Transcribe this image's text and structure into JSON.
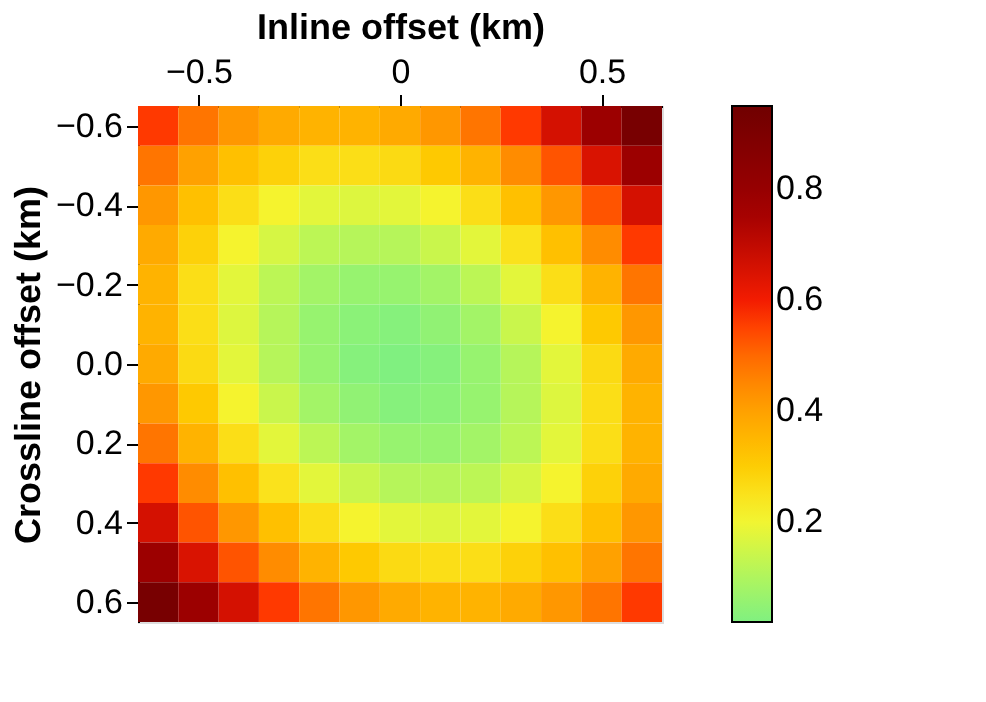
{
  "chart_data": {
    "type": "heatmap",
    "xlabel": "Inline offset (km)",
    "ylabel": "Crossline offset (km)",
    "x": [
      -0.6,
      -0.5,
      -0.4,
      -0.3,
      -0.2,
      -0.1,
      0.0,
      0.1,
      0.2,
      0.3,
      0.4,
      0.5,
      0.6
    ],
    "y": [
      -0.6,
      -0.5,
      -0.4,
      -0.3,
      -0.2,
      -0.1,
      0.0,
      0.1,
      0.2,
      0.3,
      0.4,
      0.5,
      0.6
    ],
    "xlim": [
      -0.65,
      0.65
    ],
    "ylim": [
      0.65,
      -0.65
    ],
    "xticks": [
      {
        "value": -0.5,
        "label": "−0.5"
      },
      0,
      0.5
    ],
    "yticks": [
      {
        "value": -0.6,
        "label": "−0.6"
      },
      {
        "value": -0.4,
        "label": "−0.4"
      },
      {
        "value": -0.2,
        "label": "−0.2"
      },
      {
        "value": 0,
        "label": "0.0"
      },
      0.2,
      0.4,
      0.6
    ],
    "clim": [
      0.02,
      0.95
    ],
    "cticks": [
      0.2,
      0.4,
      0.6,
      0.8
    ],
    "colors": [
      "#80f080",
      "#f5f530",
      "#ffa500",
      "#ff2000",
      "#a00000",
      "#700000"
    ],
    "cells": [
      [
        0.56,
        0.48,
        0.42,
        0.38,
        0.36,
        0.36,
        0.38,
        0.42,
        0.48,
        0.56,
        0.66,
        0.78,
        0.92
      ],
      [
        0.48,
        0.4,
        0.33,
        0.29,
        0.26,
        0.26,
        0.27,
        0.31,
        0.36,
        0.44,
        0.53,
        0.65,
        0.78
      ],
      [
        0.42,
        0.33,
        0.26,
        0.21,
        0.18,
        0.17,
        0.18,
        0.21,
        0.26,
        0.33,
        0.42,
        0.53,
        0.66
      ],
      [
        0.38,
        0.29,
        0.21,
        0.16,
        0.12,
        0.11,
        0.11,
        0.14,
        0.18,
        0.25,
        0.33,
        0.44,
        0.56
      ],
      [
        0.36,
        0.26,
        0.18,
        0.12,
        0.08,
        0.06,
        0.06,
        0.08,
        0.12,
        0.18,
        0.26,
        0.36,
        0.48
      ],
      [
        0.36,
        0.26,
        0.17,
        0.11,
        0.06,
        0.04,
        0.03,
        0.05,
        0.08,
        0.14,
        0.21,
        0.31,
        0.42
      ],
      [
        0.38,
        0.27,
        0.18,
        0.11,
        0.06,
        0.03,
        0.02,
        0.03,
        0.06,
        0.11,
        0.18,
        0.27,
        0.38
      ],
      [
        0.42,
        0.31,
        0.21,
        0.14,
        0.08,
        0.05,
        0.03,
        0.04,
        0.06,
        0.11,
        0.17,
        0.26,
        0.36
      ],
      [
        0.48,
        0.36,
        0.26,
        0.18,
        0.12,
        0.08,
        0.06,
        0.06,
        0.08,
        0.12,
        0.18,
        0.26,
        0.36
      ],
      [
        0.56,
        0.44,
        0.33,
        0.25,
        0.18,
        0.14,
        0.11,
        0.11,
        0.12,
        0.16,
        0.21,
        0.29,
        0.38
      ],
      [
        0.66,
        0.53,
        0.42,
        0.33,
        0.26,
        0.21,
        0.18,
        0.17,
        0.18,
        0.21,
        0.26,
        0.33,
        0.42
      ],
      [
        0.78,
        0.65,
        0.53,
        0.44,
        0.36,
        0.31,
        0.27,
        0.26,
        0.26,
        0.29,
        0.33,
        0.4,
        0.48
      ],
      [
        0.92,
        0.78,
        0.66,
        0.56,
        0.48,
        0.42,
        0.38,
        0.36,
        0.36,
        0.38,
        0.42,
        0.48,
        0.56
      ]
    ]
  }
}
